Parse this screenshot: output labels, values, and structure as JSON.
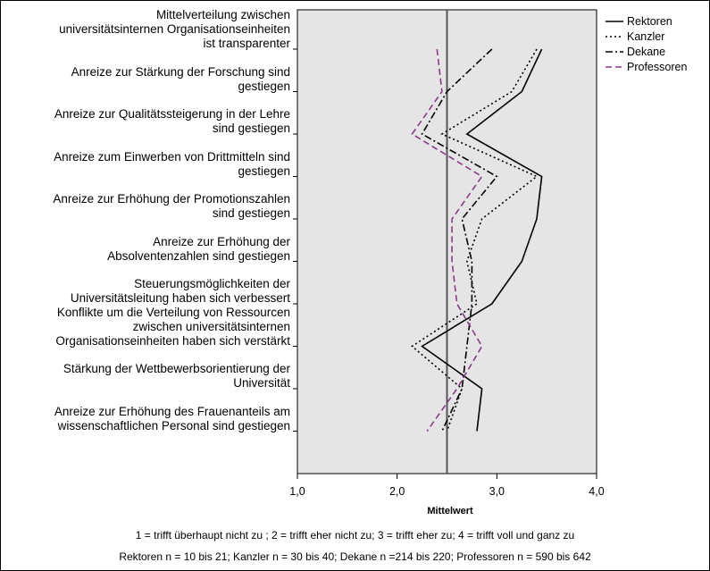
{
  "chart_data": {
    "type": "line",
    "orientation": "horizontal",
    "categories": [
      "Mittelverteilung zwischen\nuniversitätsinternen Organisationseinheiten\nist transparenter",
      "Anreize zur Stärkung der Forschung sind\ngestiegen",
      "Anreize zur Qualitätssteigerung in der Lehre\nsind gestiegen",
      "Anreize zum Einwerben von Drittmitteln sind\ngestiegen",
      "Anreize zur Erhöhung der Promotionszahlen\nsind gestiegen",
      "Anreize zur Erhöhung der\nAbsolventenzahlen sind gestiegen",
      "Steuerungsmöglichkeiten der\nUniversitätsleitung haben sich verbessert",
      "Konflikte um die Verteilung von Ressourcen\nzwischen universitätsinternen\nOrganisationseinheiten haben sich verstärkt",
      "Stärkung der Wettbewerbsorientierung der\nUniversität",
      "Anreize zur Erhöhung des Frauenanteils am\nwissenschaftlichen Personal sind gestiegen"
    ],
    "series": [
      {
        "name": "Rektoren",
        "style": "solid",
        "color": "#000000",
        "values": [
          3.45,
          3.25,
          2.7,
          3.45,
          3.4,
          3.25,
          2.95,
          2.25,
          2.85,
          2.8
        ]
      },
      {
        "name": "Kanzler",
        "style": "dotted",
        "color": "#000000",
        "values": [
          3.4,
          3.15,
          2.45,
          3.4,
          2.85,
          2.7,
          2.8,
          2.15,
          2.65,
          2.5
        ]
      },
      {
        "name": "Dekane",
        "style": "dashdot",
        "color": "#000000",
        "values": [
          2.95,
          2.5,
          2.25,
          3.0,
          2.65,
          2.75,
          2.75,
          2.7,
          2.65,
          2.45
        ]
      },
      {
        "name": "Professoren",
        "style": "dashed",
        "color": "#8b3a8b",
        "values": [
          2.4,
          2.45,
          2.15,
          2.85,
          2.55,
          2.55,
          2.6,
          2.85,
          2.6,
          2.3
        ]
      }
    ],
    "xlim": [
      1.0,
      4.0
    ],
    "xticks": [
      "1,0",
      "2,0",
      "3,0",
      "4,0"
    ],
    "reference_line": 2.5,
    "xlabel": "Mittelwert",
    "legend": "top-right",
    "plot_background": "#e5e5e5",
    "notes": [
      "1 = trifft überhaupt nicht zu ; 2 = trifft eher nicht zu; 3 = trifft eher zu; 4 = trifft voll und ganz zu",
      "Rektoren n = 10 bis 21; Kanzler n = 30 bis 40; Dekane n =214 bis 220; Professoren n = 590 bis 642"
    ]
  }
}
